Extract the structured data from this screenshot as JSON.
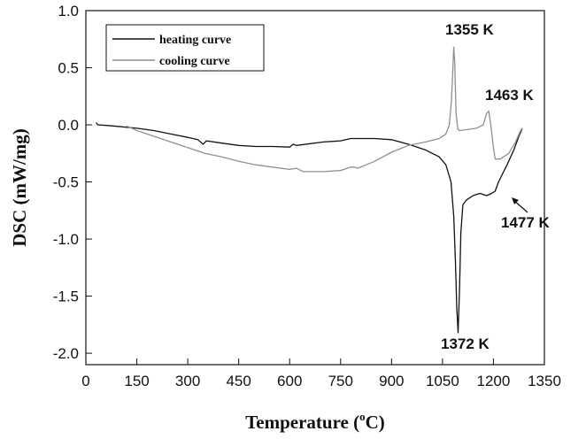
{
  "chart_data": {
    "type": "line",
    "xlabel": "Temperature (",
    "xlabel_sup": "o",
    "xlabel_unit": "C)",
    "ylabel": "DSC (mW/mg)",
    "xlim": [
      0,
      1350
    ],
    "ylim": [
      -2.1,
      1.0
    ],
    "x_ticks": [
      "0",
      "150",
      "300",
      "450",
      "600",
      "750",
      "900",
      "1050",
      "1200",
      "1350"
    ],
    "y_ticks": [
      "1.0",
      "0.5",
      "0.0",
      "-0.5",
      "-1.0",
      "-1.5",
      "-2.0"
    ],
    "legend_position": "top-left",
    "series": [
      {
        "name": "heating curve",
        "color": "#111111",
        "points": [
          [
            30,
            0.02
          ],
          [
            35,
            0.0
          ],
          [
            80,
            -0.01
          ],
          [
            150,
            -0.03
          ],
          [
            200,
            -0.05
          ],
          [
            250,
            -0.08
          ],
          [
            300,
            -0.11
          ],
          [
            330,
            -0.13
          ],
          [
            345,
            -0.17
          ],
          [
            355,
            -0.14
          ],
          [
            400,
            -0.16
          ],
          [
            450,
            -0.18
          ],
          [
            500,
            -0.19
          ],
          [
            550,
            -0.19
          ],
          [
            600,
            -0.195
          ],
          [
            610,
            -0.17
          ],
          [
            620,
            -0.18
          ],
          [
            700,
            -0.15
          ],
          [
            750,
            -0.14
          ],
          [
            780,
            -0.12
          ],
          [
            800,
            -0.12
          ],
          [
            850,
            -0.12
          ],
          [
            900,
            -0.13
          ],
          [
            950,
            -0.17
          ],
          [
            1000,
            -0.22
          ],
          [
            1040,
            -0.28
          ],
          [
            1060,
            -0.35
          ],
          [
            1075,
            -0.5
          ],
          [
            1083,
            -0.8
          ],
          [
            1088,
            -1.2
          ],
          [
            1092,
            -1.6
          ],
          [
            1096,
            -1.82
          ],
          [
            1100,
            -1.45
          ],
          [
            1104,
            -0.95
          ],
          [
            1110,
            -0.7
          ],
          [
            1120,
            -0.66
          ],
          [
            1140,
            -0.62
          ],
          [
            1160,
            -0.6
          ],
          [
            1180,
            -0.62
          ],
          [
            1195,
            -0.6
          ],
          [
            1205,
            -0.58
          ],
          [
            1215,
            -0.5
          ],
          [
            1240,
            -0.35
          ],
          [
            1260,
            -0.22
          ],
          [
            1275,
            -0.1
          ],
          [
            1285,
            -0.03
          ]
        ]
      },
      {
        "name": "cooling curve",
        "color": "#909090",
        "points": [
          [
            120,
            -0.01
          ],
          [
            150,
            -0.05
          ],
          [
            200,
            -0.1
          ],
          [
            250,
            -0.15
          ],
          [
            300,
            -0.2
          ],
          [
            350,
            -0.25
          ],
          [
            400,
            -0.28
          ],
          [
            450,
            -0.32
          ],
          [
            500,
            -0.35
          ],
          [
            550,
            -0.37
          ],
          [
            600,
            -0.39
          ],
          [
            620,
            -0.38
          ],
          [
            640,
            -0.41
          ],
          [
            700,
            -0.41
          ],
          [
            750,
            -0.4
          ],
          [
            780,
            -0.37
          ],
          [
            790,
            -0.37
          ],
          [
            800,
            -0.38
          ],
          [
            850,
            -0.32
          ],
          [
            900,
            -0.24
          ],
          [
            950,
            -0.18
          ],
          [
            1000,
            -0.15
          ],
          [
            1040,
            -0.12
          ],
          [
            1060,
            -0.08
          ],
          [
            1070,
            0.0
          ],
          [
            1076,
            0.2
          ],
          [
            1080,
            0.45
          ],
          [
            1083,
            0.68
          ],
          [
            1086,
            0.55
          ],
          [
            1090,
            0.1
          ],
          [
            1095,
            -0.04
          ],
          [
            1100,
            -0.05
          ],
          [
            1150,
            -0.03
          ],
          [
            1170,
            0.0
          ],
          [
            1180,
            0.1
          ],
          [
            1186,
            0.12
          ],
          [
            1192,
            0.0
          ],
          [
            1200,
            -0.2
          ],
          [
            1205,
            -0.3
          ],
          [
            1220,
            -0.3
          ],
          [
            1245,
            -0.25
          ],
          [
            1265,
            -0.15
          ],
          [
            1280,
            -0.05
          ],
          [
            1285,
            -0.03
          ]
        ]
      }
    ],
    "annotations": [
      {
        "text": "1355 K",
        "x": 1083,
        "y": 0.68
      },
      {
        "text": "1463 K",
        "x": 1186,
        "y": 0.12
      },
      {
        "text": "1477 K",
        "x": 1200,
        "y": -0.6
      },
      {
        "text": "1372 K",
        "x": 1096,
        "y": -1.82
      }
    ]
  }
}
